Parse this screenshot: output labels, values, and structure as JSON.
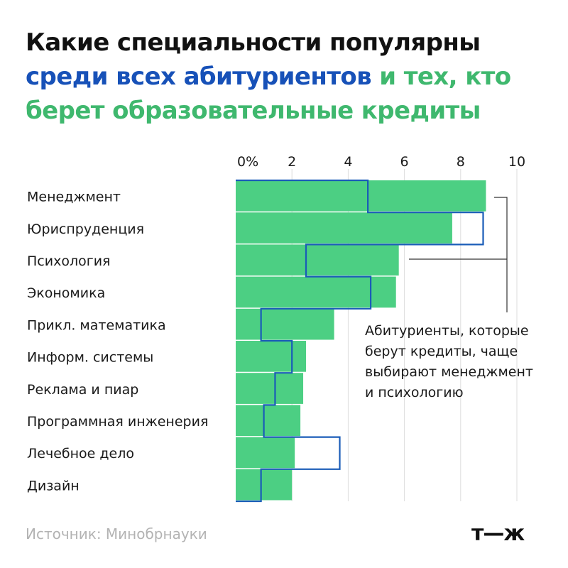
{
  "title": {
    "line1": "Какие специальности популярны",
    "part_blue": "среди всех абитуриентов",
    "part_green_1": " и тех, кто",
    "line3": "берет образовательные кредиты"
  },
  "colors": {
    "bar_fill": "#4ccf83",
    "outline": "#1a5cb8",
    "grid": "#dddddd",
    "title_blue": "#1751b8",
    "title_green": "#3fb86e"
  },
  "chart_data": {
    "type": "bar",
    "orientation": "horizontal",
    "categories": [
      "Менеджмент",
      "Юриспруденция",
      "Психология",
      "Экономика",
      "Прикл. математика",
      "Информ. системы",
      "Реклама и пиар",
      "Программная инженерия",
      "Лечебное дело",
      "Дизайн"
    ],
    "series": [
      {
        "values": [
          8.9,
          7.7,
          5.8,
          5.7,
          3.5,
          2.5,
          2.4,
          2.3,
          2.1,
          2.0
        ]
      },
      {
        "values": [
          4.7,
          8.8,
          2.5,
          4.8,
          0.9,
          2.0,
          1.4,
          1.0,
          3.7,
          0.9
        ]
      }
    ],
    "x_ticks": [
      "0%",
      "2",
      "4",
      "6",
      "8",
      "10"
    ],
    "xlim": [
      0,
      10
    ],
    "grid": true
  },
  "annotation": "Абитуриенты, которые\nберут кредиты, чаще\nвыбирают менеджмент\nи психологию",
  "source": "Источник: Минобрнауки",
  "logo": "т—ж"
}
